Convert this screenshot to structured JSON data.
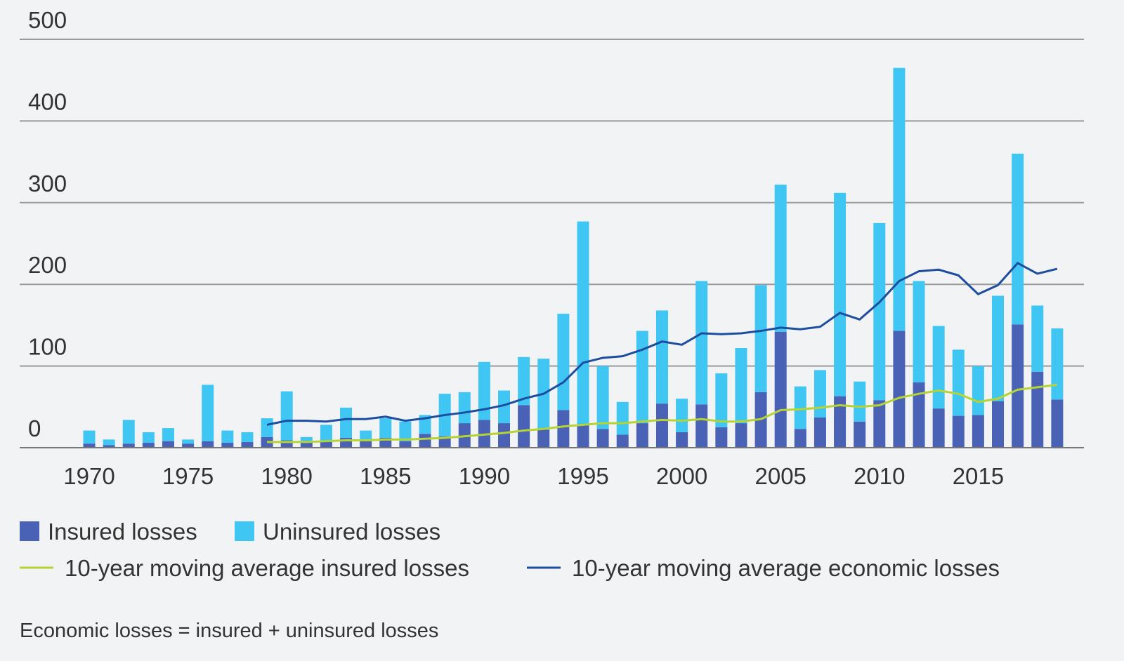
{
  "chart_data": {
    "type": "bar",
    "categories": [
      "1970",
      null,
      null,
      null,
      null,
      "1975",
      null,
      null,
      null,
      null,
      "1980",
      null,
      null,
      null,
      null,
      "1985",
      null,
      null,
      null,
      null,
      "1990",
      null,
      null,
      null,
      null,
      "1995",
      null,
      null,
      null,
      null,
      "2000",
      null,
      null,
      null,
      null,
      "2005",
      null,
      null,
      null,
      null,
      "2010",
      null,
      null,
      null,
      null,
      "2015",
      null,
      null,
      null,
      null
    ],
    "series": [
      {
        "name": "Insured losses",
        "color": "#4a62b5",
        "values": [
          5,
          3,
          5,
          6,
          8,
          5,
          8,
          6,
          7,
          13,
          9,
          6,
          8,
          12,
          8,
          12,
          8,
          17,
          14,
          30,
          34,
          30,
          52,
          22,
          46,
          28,
          23,
          16,
          30,
          54,
          19,
          53,
          25,
          30,
          68,
          142,
          23,
          37,
          63,
          32,
          58,
          143,
          80,
          48,
          39,
          40,
          57,
          151,
          93,
          59
        ]
      },
      {
        "name": "Uninsured losses",
        "color": "#3fc6f2",
        "values": [
          16,
          7,
          29,
          13,
          16,
          5,
          69,
          15,
          12,
          23,
          60,
          7,
          20,
          37,
          13,
          24,
          24,
          23,
          52,
          38,
          71,
          40,
          59,
          87,
          118,
          249,
          77,
          40,
          113,
          114,
          41,
          151,
          66,
          92,
          131,
          180,
          52,
          58,
          249,
          49,
          217,
          322,
          124,
          101,
          81,
          60,
          129,
          209,
          81,
          87
        ]
      },
      {
        "name": "10-year moving average insured losses",
        "color": "#b5d334",
        "line": true,
        "values": [
          null,
          null,
          null,
          null,
          null,
          null,
          null,
          null,
          null,
          7,
          7,
          7,
          8,
          9,
          9,
          10,
          10,
          11,
          12,
          14,
          16,
          18,
          21,
          23,
          26,
          28,
          30,
          30,
          32,
          34,
          33,
          35,
          32,
          32,
          35,
          46,
          47,
          49,
          52,
          50,
          52,
          61,
          66,
          70,
          66,
          56,
          60,
          71,
          74,
          77
        ]
      },
      {
        "name": "10-year moving average economic losses",
        "color": "#1d4d9f",
        "line": true,
        "values": [
          null,
          null,
          null,
          null,
          null,
          null,
          null,
          null,
          null,
          28,
          33,
          33,
          32,
          35,
          35,
          38,
          33,
          36,
          40,
          43,
          47,
          52,
          60,
          66,
          80,
          104,
          110,
          112,
          120,
          130,
          126,
          140,
          139,
          140,
          143,
          147,
          145,
          148,
          165,
          157,
          178,
          204,
          216,
          218,
          211,
          188,
          199,
          226,
          213,
          219
        ]
      }
    ],
    "ylim": [
      0,
      500
    ],
    "yticks": [
      0,
      100,
      200,
      300,
      400,
      500
    ],
    "grid": true,
    "note": "Economic losses = insured + uninsured losses"
  }
}
